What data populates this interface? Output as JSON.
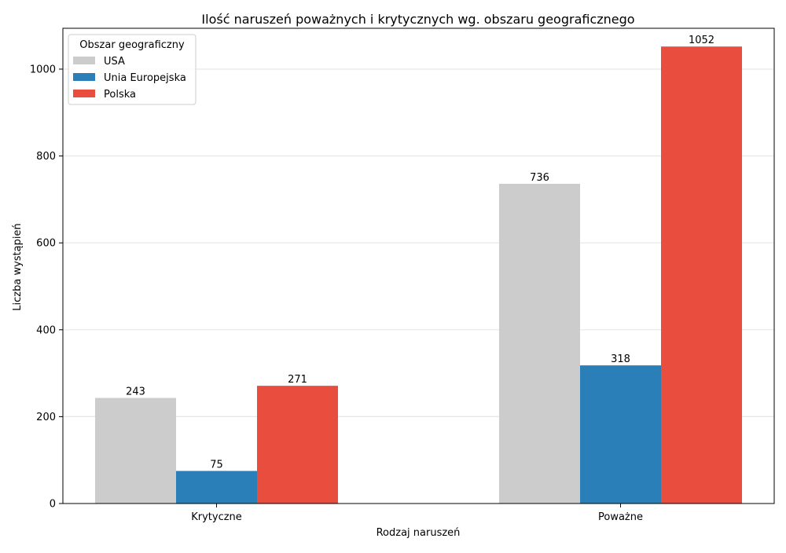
{
  "chart_data": {
    "type": "bar",
    "title": "Ilość naruszeń poważnych i krytycznych wg. obszaru geograficznego",
    "xlabel": "Rodzaj naruszeń",
    "ylabel": "Liczba wystąpień",
    "categories": [
      "Krytyczne",
      "Poważne"
    ],
    "series": [
      {
        "name": "USA",
        "values": [
          243,
          736
        ],
        "color": "#cccccc"
      },
      {
        "name": "Unia Europejska",
        "values": [
          75,
          318
        ],
        "color": "#2b7fb8"
      },
      {
        "name": "Polska",
        "values": [
          271,
          1052
        ],
        "color": "#e84d3e"
      }
    ],
    "ylim": [
      0,
      1094
    ],
    "yticks": [
      0,
      200,
      400,
      600,
      800,
      1000
    ],
    "grid": "horizontal",
    "legend": {
      "title": "Obszar geograficzny",
      "placement": "top-left"
    }
  }
}
